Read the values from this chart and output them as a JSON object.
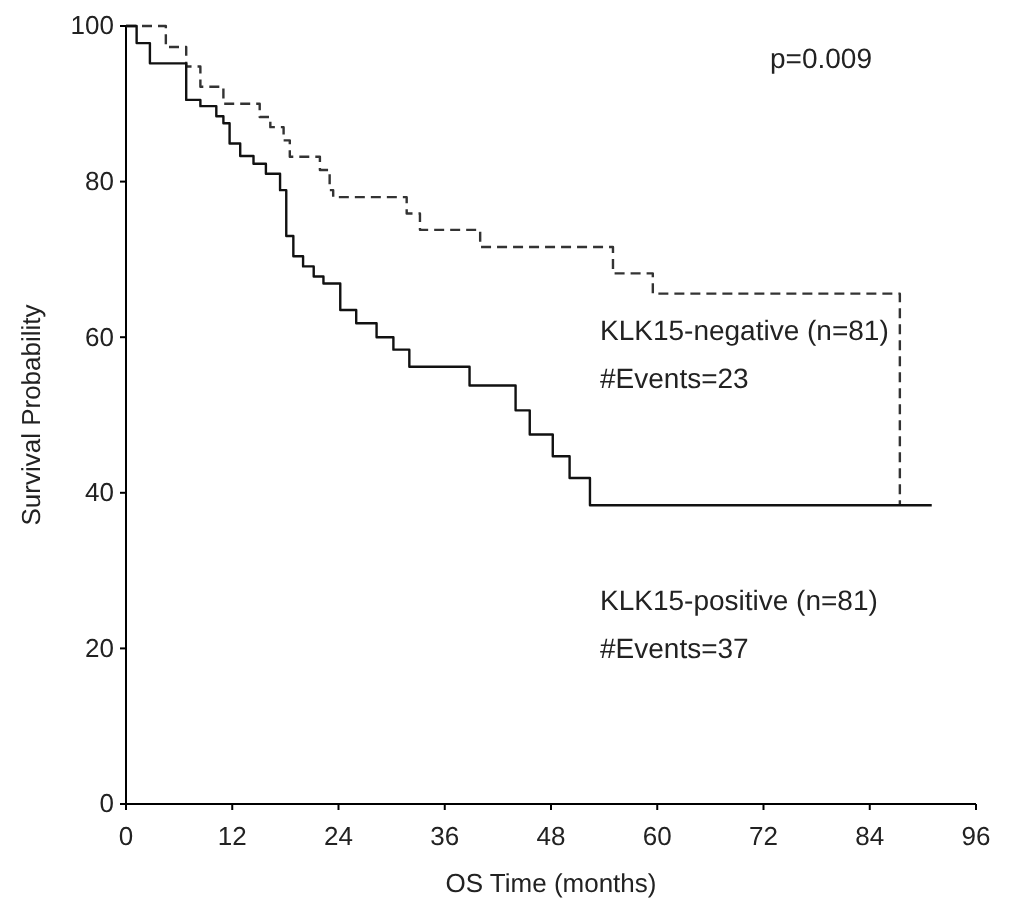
{
  "chart_data": {
    "type": "step",
    "xlabel": "OS Time (months)",
    "ylabel": "Survival Probability",
    "xlim": [
      0,
      96
    ],
    "ylim": [
      0,
      100
    ],
    "xticks": [
      0,
      12,
      24,
      36,
      48,
      60,
      72,
      84,
      96
    ],
    "yticks": [
      0,
      20,
      40,
      60,
      80,
      100
    ],
    "grid": false,
    "legend": false,
    "marker": "none",
    "annotations": [
      "p=0.009",
      "#Events=23",
      "#Events=37"
    ],
    "series": [
      {
        "name": "KLK15-negative (n=81)",
        "color": "#333333",
        "line_style": "dashed",
        "x": [
          0,
          4.5,
          6.8,
          8.4,
          11,
          15.1,
          16.3,
          17.8,
          18.5,
          21.9,
          23,
          23.4,
          31.7,
          33.2,
          40,
          55,
          59.5,
          87.4
        ],
        "values": [
          100,
          97.3,
          94.8,
          92.2,
          90,
          88.3,
          87,
          85.3,
          83.2,
          81.5,
          78.9,
          78,
          75.9,
          73.8,
          71.6,
          68.2,
          65.6,
          38.4
        ]
      },
      {
        "name": "KLK15-positive (n=81)",
        "color": "#111111",
        "line_style": "solid",
        "x": [
          0,
          1.2,
          2.7,
          6.8,
          8.4,
          10.2,
          11,
          11.7,
          12.9,
          14.4,
          15.8,
          17.4,
          18.1,
          18.9,
          20,
          21.2,
          22.3,
          24.2,
          26,
          28.3,
          30.2,
          32,
          38.8,
          44,
          45.6,
          48.2,
          50.1,
          52.4,
          91
        ],
        "values": [
          100,
          97.8,
          95.2,
          90.5,
          89.7,
          88.4,
          87.5,
          84.9,
          83.3,
          82.3,
          81,
          78.9,
          73,
          70.4,
          69.1,
          67.8,
          66.9,
          63.5,
          61.8,
          60,
          58.4,
          56.2,
          53.8,
          50.6,
          47.5,
          44.7,
          41.9,
          38.4,
          38.4
        ]
      }
    ]
  }
}
